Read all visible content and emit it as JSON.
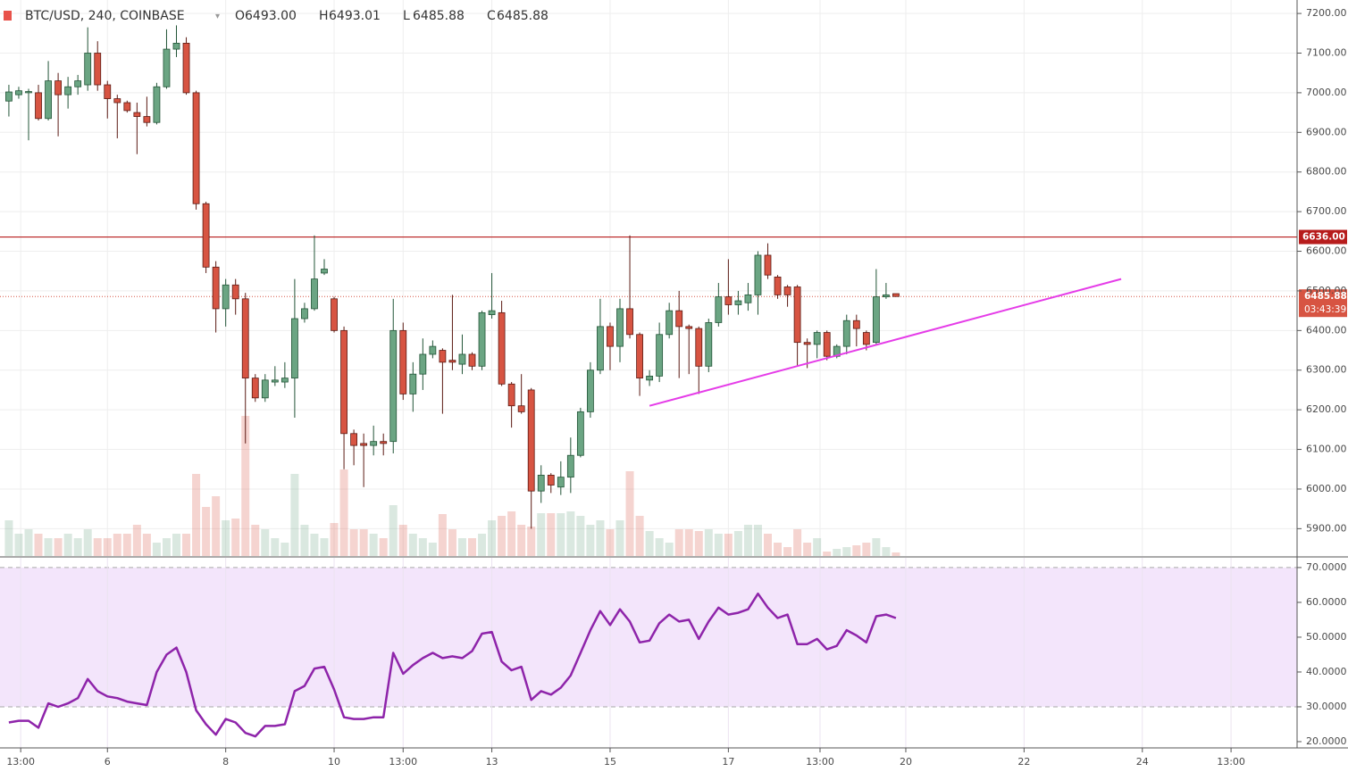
{
  "chart_data": [
    {
      "type": "candlestick",
      "title": "BTC/USD, 240, COINBASE",
      "legend": [
        {
          "prefix": "O",
          "value": 6493,
          "label": "6493.00"
        },
        {
          "prefix": "H",
          "value": 6493.01,
          "label": "6493.01"
        },
        {
          "prefix": "L",
          "value": 6485.88,
          "label": "6485.88"
        },
        {
          "prefix": "C",
          "value": 6485.88,
          "label": "6485.88"
        }
      ],
      "xlim": [
        -0.9,
        130.7
      ],
      "ylim": [
        5831,
        7234
      ],
      "yticks": [
        {
          "value": 5900,
          "label": "5900.00"
        },
        {
          "value": 6000,
          "label": "6000.00"
        },
        {
          "value": 6100,
          "label": "6100.00"
        },
        {
          "value": 6200,
          "label": "6200.00"
        },
        {
          "value": 6300,
          "label": "6300.00"
        },
        {
          "value": 6400,
          "label": "6400.00"
        },
        {
          "value": 6500,
          "label": "6500.00"
        },
        {
          "value": 6600,
          "label": "6600.00"
        },
        {
          "value": 6700,
          "label": "6700.00"
        },
        {
          "value": 6800,
          "label": "6800.00"
        },
        {
          "value": 6900,
          "label": "6900.00"
        },
        {
          "value": 7000,
          "label": "7000.00"
        },
        {
          "value": 7100,
          "label": "7100.00"
        },
        {
          "value": 7200,
          "label": "7200.00"
        }
      ],
      "grid": true,
      "up_color": "#6ba583",
      "down_color": "#d75442",
      "open": [
        6979,
        6995,
        7000,
        7000,
        6935,
        7030,
        6995,
        7015,
        7020,
        7100,
        7020,
        6985,
        6975,
        6950,
        6940,
        6925,
        7015,
        7110,
        7125,
        7000,
        6720,
        6560,
        6455,
        6515,
        6480,
        6280,
        6230,
        6270,
        6270,
        6280,
        6430,
        6455,
        6545,
        6480,
        6400,
        6140,
        6115,
        6110,
        6120,
        6120,
        6400,
        6240,
        6290,
        6340,
        6350,
        6325,
        6315,
        6340,
        6310,
        6440,
        6445,
        6265,
        6210,
        6250,
        5995,
        6035,
        6005,
        6030,
        6085,
        6195,
        6300,
        6410,
        6360,
        6455,
        6390,
        6275,
        6285,
        6390,
        6450,
        6410,
        6405,
        6310,
        6420,
        6485,
        6465,
        6470,
        6490,
        6590,
        6535,
        6510,
        6510,
        6370,
        6365,
        6395,
        6335,
        6360,
        6425,
        6395,
        6370,
        6485,
        6493
      ],
      "high": [
        7020,
        7015,
        7010,
        7020,
        7080,
        7050,
        7040,
        7045,
        7165,
        7130,
        7030,
        6995,
        6980,
        6975,
        6990,
        7025,
        7160,
        7170,
        7140,
        7005,
        6725,
        6575,
        6530,
        6530,
        6495,
        6290,
        6290,
        6310,
        6320,
        6530,
        6470,
        6640,
        6580,
        6485,
        6410,
        6150,
        6140,
        6160,
        6140,
        6480,
        6420,
        6320,
        6380,
        6375,
        6355,
        6490,
        6390,
        6345,
        6450,
        6545,
        6475,
        6270,
        6290,
        6255,
        6060,
        6040,
        6070,
        6130,
        6205,
        6320,
        6480,
        6420,
        6480,
        6640,
        6395,
        6300,
        6420,
        6470,
        6500,
        6415,
        6410,
        6430,
        6520,
        6580,
        6500,
        6520,
        6600,
        6620,
        6540,
        6515,
        6515,
        6380,
        6400,
        6400,
        6365,
        6440,
        6440,
        6400,
        6555,
        6520,
        6493.01
      ],
      "low": [
        6940,
        6985,
        6880,
        6930,
        6930,
        6890,
        6960,
        6995,
        7005,
        7005,
        6935,
        6885,
        6950,
        6845,
        6915,
        6920,
        7010,
        7090,
        6995,
        6705,
        6545,
        6395,
        6410,
        6440,
        6115,
        6220,
        6220,
        6260,
        6255,
        6180,
        6420,
        6450,
        6540,
        6395,
        6050,
        6060,
        6005,
        6085,
        6085,
        6090,
        6225,
        6195,
        6250,
        6330,
        6190,
        6300,
        6290,
        6300,
        6300,
        6430,
        6260,
        6155,
        6190,
        5900,
        5965,
        5990,
        5985,
        5990,
        6080,
        6180,
        6290,
        6300,
        6320,
        6380,
        6235,
        6260,
        6270,
        6380,
        6280,
        6290,
        6240,
        6295,
        6410,
        6440,
        6440,
        6450,
        6440,
        6530,
        6480,
        6460,
        6310,
        6305,
        6330,
        6325,
        6330,
        6340,
        6360,
        6350,
        6365,
        6480,
        6485.88
      ],
      "close": [
        7002,
        7005,
        7003,
        6935,
        7030,
        6995,
        7015,
        7030,
        7100,
        7020,
        6985,
        6975,
        6955,
        6940,
        6925,
        7015,
        7110,
        7125,
        7000,
        6720,
        6560,
        6455,
        6515,
        6480,
        6280,
        6230,
        6275,
        6275,
        6280,
        6430,
        6455,
        6530,
        6555,
        6400,
        6140,
        6110,
        6110,
        6120,
        6115,
        6400,
        6240,
        6290,
        6340,
        6360,
        6320,
        6320,
        6340,
        6310,
        6445,
        6450,
        6265,
        6210,
        6195,
        5995,
        6035,
        6010,
        6030,
        6085,
        6195,
        6300,
        6410,
        6360,
        6455,
        6390,
        6280,
        6285,
        6390,
        6450,
        6410,
        6405,
        6310,
        6420,
        6485,
        6465,
        6475,
        6490,
        6590,
        6540,
        6490,
        6490,
        6370,
        6365,
        6395,
        6335,
        6360,
        6425,
        6405,
        6365,
        6485,
        6490,
        6485.88
      ],
      "volume": [
        40,
        25,
        30,
        25,
        20,
        20,
        25,
        20,
        30,
        20,
        20,
        25,
        25,
        35,
        25,
        15,
        20,
        25,
        25,
        92,
        55,
        67,
        40,
        42,
        157,
        35,
        30,
        20,
        15,
        92,
        35,
        25,
        20,
        37,
        97,
        30,
        30,
        25,
        20,
        57,
        35,
        25,
        20,
        15,
        47,
        30,
        20,
        20,
        25,
        40,
        45,
        50,
        35,
        33,
        48,
        48,
        48,
        50,
        45,
        35,
        40,
        30,
        40,
        95,
        45,
        28,
        20,
        15,
        30,
        30,
        28,
        30,
        25,
        25,
        28,
        35,
        35,
        25,
        15,
        10,
        30,
        15,
        20,
        5,
        8,
        10,
        12,
        15,
        20,
        10,
        4
      ],
      "hline": {
        "value": 6636,
        "label": "6636.00",
        "color": "#b71c1c"
      },
      "last_price": {
        "value": 6485.88,
        "label": "6485.88",
        "countdown": "03:43:39",
        "color": "#d75442"
      },
      "trendline": {
        "x": [
          65.0,
          112.85
        ],
        "y": [
          6210,
          6530
        ],
        "color": "#e53ce8"
      }
    },
    {
      "type": "line",
      "xlim": [
        -0.9,
        130.7
      ],
      "ylim": [
        18.2,
        72.8
      ],
      "color": "#8e24aa",
      "band": [
        30,
        70
      ],
      "band_color": "#f3e5fb",
      "yticks": [
        {
          "value": 20,
          "label": "20.0000"
        },
        {
          "value": 30,
          "label": "30.0000"
        },
        {
          "value": 40,
          "label": "40.0000"
        },
        {
          "value": 50,
          "label": "50.0000"
        },
        {
          "value": 60,
          "label": "60.0000"
        },
        {
          "value": 70,
          "label": "70.0000"
        }
      ],
      "xticks": [
        {
          "value": 1.2,
          "label": "13:00"
        },
        {
          "value": 10,
          "label": "6"
        },
        {
          "value": 22,
          "label": "8"
        },
        {
          "value": 33,
          "label": "10"
        },
        {
          "value": 40,
          "label": "13:00"
        },
        {
          "value": 49,
          "label": "13"
        },
        {
          "value": 61,
          "label": "15"
        },
        {
          "value": 73,
          "label": "17"
        },
        {
          "value": 82.3,
          "label": "13:00"
        },
        {
          "value": 91,
          "label": "20"
        },
        {
          "value": 103,
          "label": "22"
        },
        {
          "value": 115,
          "label": "24"
        },
        {
          "value": 124,
          "label": "13:00"
        }
      ],
      "values": [
        25.5,
        26,
        26,
        24,
        31,
        30,
        31,
        32.5,
        38,
        34.5,
        33,
        32.5,
        31.5,
        31,
        30.5,
        40,
        45,
        47,
        40,
        29,
        25,
        22,
        26.5,
        25.5,
        22.5,
        21.5,
        24.5,
        24.5,
        25,
        34.5,
        36,
        41,
        41.5,
        35,
        27,
        26.5,
        26.5,
        27,
        27,
        45.5,
        39.5,
        42,
        44,
        45.5,
        44,
        44.5,
        44,
        46,
        51,
        51.5,
        43,
        40.5,
        41.5,
        32,
        34.5,
        33.5,
        35.5,
        39,
        45.5,
        52,
        57.5,
        53.5,
        58,
        54.5,
        48.5,
        49,
        54,
        56.5,
        54.5,
        55,
        49.5,
        54.5,
        58.5,
        56.5,
        57,
        58,
        62.5,
        58.5,
        55.5,
        56.5,
        48,
        48,
        49.5,
        46.5,
        47.5,
        52,
        50.5,
        48.5,
        56,
        56.5,
        55.5
      ]
    }
  ]
}
